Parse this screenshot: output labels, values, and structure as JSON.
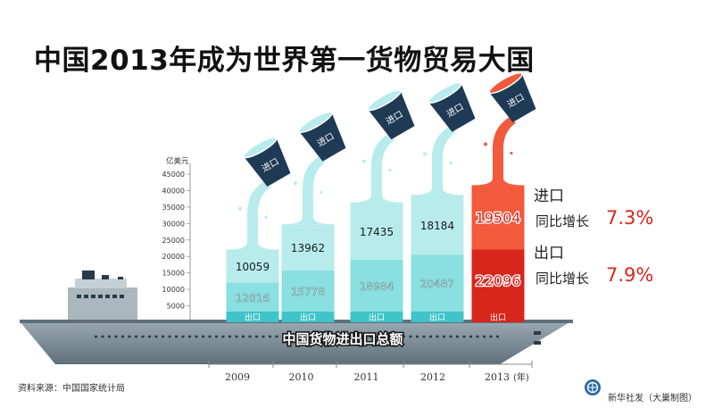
{
  "title": "中国2013年成为世界第一货物贸易大国",
  "chart_data": {
    "type": "bar",
    "unit": "亿美元",
    "year_unit": "(年)",
    "categories": [
      "2009",
      "2010",
      "2011",
      "2012",
      "2013"
    ],
    "series": [
      {
        "name": "出口",
        "values": [
          12016,
          15778,
          18984,
          20487,
          22096
        ]
      },
      {
        "name": "进口",
        "values": [
          10059,
          13962,
          17435,
          18184,
          19504
        ]
      }
    ],
    "ylim": [
      0,
      45000
    ],
    "yticks": [
      0,
      5000,
      10000,
      15000,
      20000,
      25000,
      30000,
      35000,
      40000,
      45000
    ],
    "stacked": true,
    "bucket_label": "进口",
    "base_label": "出口",
    "ship_label": "中国货物进出口总额",
    "highlight_year": "2013"
  },
  "legend": {
    "import_title": "进口",
    "import_yoy_label": "同比增长",
    "import_yoy_value": "7.3%",
    "export_title": "出口",
    "export_yoy_label": "同比增长",
    "export_yoy_value": "7.9%"
  },
  "source": "资料来源：中国国家统计局",
  "credit": "新华社发（大巢制图）",
  "colors": {
    "teal_light": "#b8ecec",
    "teal_mid": "#8adfe0",
    "teal_dark": "#3fc5c9",
    "navy": "#1f3a55",
    "red_light": "#f25a3c",
    "red_dark": "#d9261c",
    "ship": "#7d8e98"
  }
}
